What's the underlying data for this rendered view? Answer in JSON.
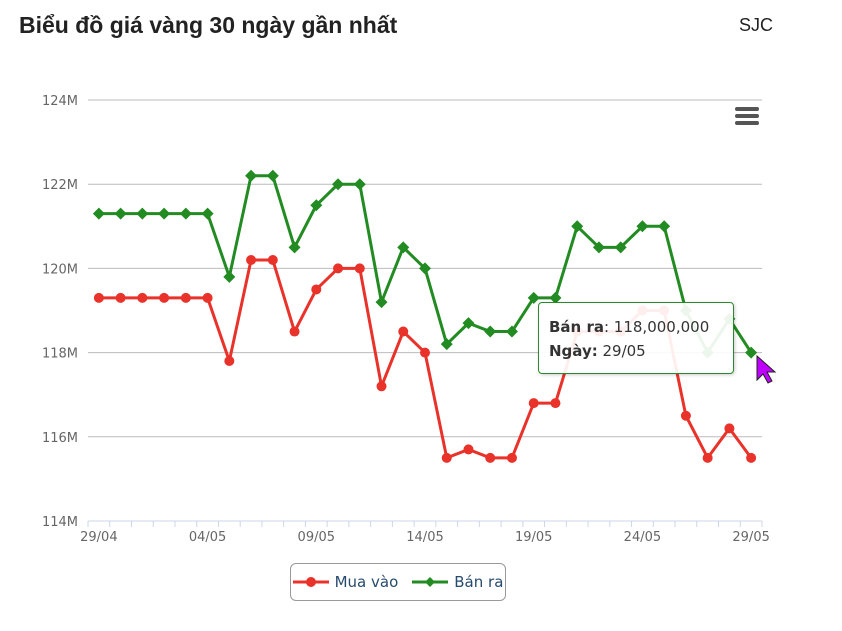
{
  "title": "Biểu đồ giá vàng 30 ngày gần nhất",
  "brand": "SJC",
  "chart_data": {
    "type": "line",
    "title": "",
    "ylim": [
      114,
      124
    ],
    "yticks": [
      "114M",
      "116M",
      "118M",
      "120M",
      "122M",
      "124M"
    ],
    "ytick_values": [
      114,
      116,
      118,
      120,
      122,
      124
    ],
    "x": [
      "29/04",
      "30/04",
      "01/05",
      "02/05",
      "03/05",
      "04/05",
      "05/05",
      "06/05",
      "07/05",
      "08/05",
      "09/05",
      "10/05",
      "11/05",
      "12/05",
      "13/05",
      "14/05",
      "15/05",
      "16/05",
      "17/05",
      "18/05",
      "19/05",
      "20/05",
      "21/05",
      "22/05",
      "23/05",
      "24/05",
      "25/05",
      "26/05",
      "27/05",
      "28/05",
      "29/05"
    ],
    "xticks": [
      "29/04",
      "04/05",
      "09/05",
      "14/05",
      "19/05",
      "24/05",
      "29/05"
    ],
    "grid": true,
    "legend": "bottom",
    "series": [
      {
        "name": "Mua vào",
        "color": "#e8322a",
        "marker": "circle",
        "values": [
          119.3,
          119.3,
          119.3,
          119.3,
          119.3,
          119.3,
          117.8,
          120.2,
          120.2,
          118.5,
          119.5,
          120.0,
          120.0,
          117.2,
          118.5,
          118.0,
          115.5,
          115.7,
          115.5,
          115.5,
          116.8,
          116.8,
          118.5,
          118.5,
          118.5,
          119.0,
          119.0,
          116.5,
          115.5,
          116.2,
          115.5
        ]
      },
      {
        "name": "Bán ra",
        "color": "#228b22",
        "marker": "diamond",
        "values": [
          121.3,
          121.3,
          121.3,
          121.3,
          121.3,
          121.3,
          119.8,
          122.2,
          122.2,
          120.5,
          121.5,
          122.0,
          122.0,
          119.2,
          120.5,
          120.0,
          118.2,
          118.7,
          118.5,
          118.5,
          119.3,
          119.3,
          121.0,
          120.5,
          120.5,
          121.0,
          121.0,
          119.0,
          118.0,
          118.8,
          118.0
        ]
      }
    ]
  },
  "tooltip": {
    "series_label": "Bán ra",
    "value": ": 118,000,000",
    "date_label": "Ngày:",
    "date": " 29/05"
  },
  "menu_icon": "hamburger-icon"
}
